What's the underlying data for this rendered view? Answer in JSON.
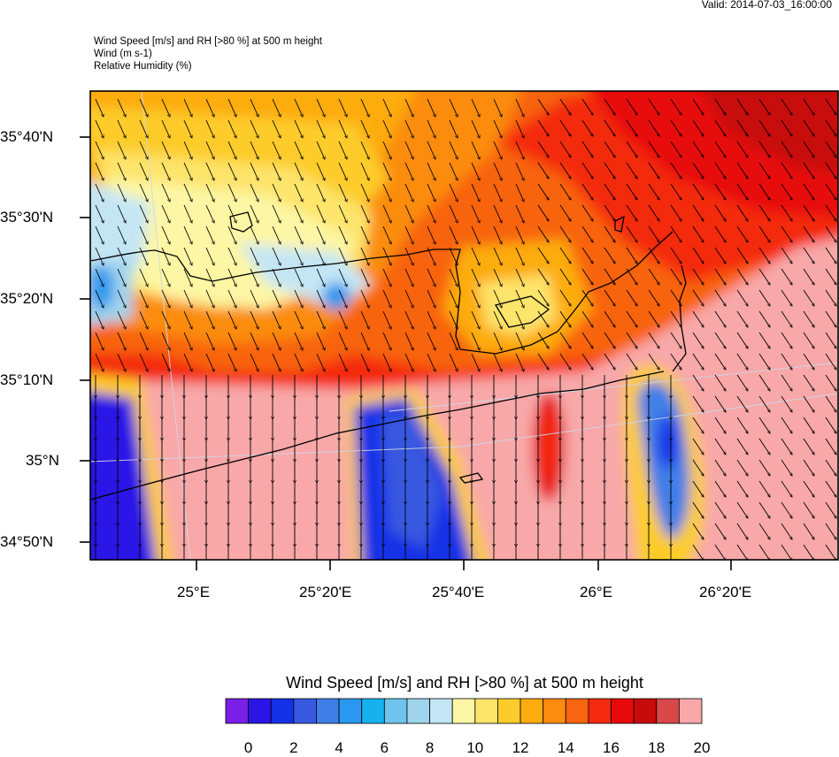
{
  "valid_time": "Valid: 2014-07-03_16:00:00",
  "header": {
    "line1": "Wind Speed [m/s] and RH [>80 %] at 500 m height",
    "line2": "Wind   (m s-1)",
    "line3": "Relative Humidity   (%)"
  },
  "lat_labels": [
    "35°40'N",
    "35°30'N",
    "35°20'N",
    "35°10'N",
    "35°N",
    "34°50'N"
  ],
  "lon_labels": [
    "25°E",
    "25°20'E",
    "25°40'E",
    "26°E",
    "26°20'E"
  ],
  "colorbar": {
    "title": "Wind Speed [m/s] and RH [>80 %] at 500 m height",
    "labels": [
      "0",
      "2",
      "4",
      "6",
      "8",
      "10",
      "12",
      "14",
      "16",
      "18",
      "20"
    ],
    "colors": [
      "#7a1fe6",
      "#2a14e6",
      "#1431e6",
      "#3759e0",
      "#3f7ee8",
      "#2a98ee",
      "#16b2f0",
      "#6ec4ec",
      "#a0d4ec",
      "#c4e6f4",
      "#fdf6a4",
      "#fde46a",
      "#fdcc2c",
      "#fdac10",
      "#fb8c10",
      "#f86410",
      "#f42a10",
      "#e80a0a",
      "#c80a0a",
      "#d84848",
      "#f8a8a8"
    ]
  },
  "map": {
    "icons": [
      "wind-barb-arrow"
    ]
  }
}
